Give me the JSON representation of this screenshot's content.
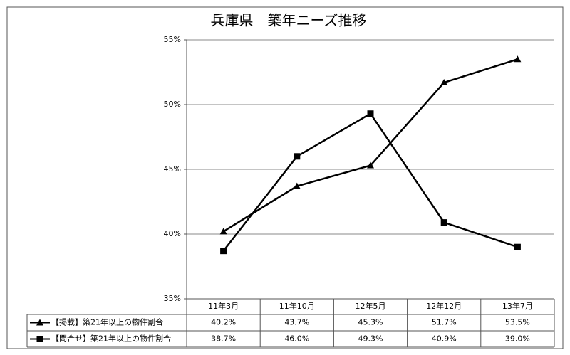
{
  "chart_data": {
    "type": "line",
    "title": "兵庫県　築年ニーズ推移",
    "categories": [
      "11年3月",
      "11年10月",
      "12年5月",
      "12年12月",
      "13年7月"
    ],
    "series": [
      {
        "name": "【掲載】築21年以上の物件割合",
        "color": "#000000",
        "marker": "triangle",
        "values": [
          40.2,
          43.7,
          45.3,
          51.7,
          53.5
        ],
        "value_labels": [
          "40.2%",
          "43.7%",
          "45.3%",
          "51.7%",
          "53.5%"
        ]
      },
      {
        "name": "【問合せ】築21年以上の物件割合",
        "color": "#000000",
        "marker": "square",
        "values": [
          38.7,
          46.0,
          49.3,
          40.9,
          39.0
        ],
        "value_labels": [
          "38.7%",
          "46.0%",
          "49.3%",
          "40.9%",
          "39.0%"
        ]
      }
    ],
    "ylim": [
      35,
      55
    ],
    "yticks": [
      {
        "value": 35,
        "label": "35%"
      },
      {
        "value": 40,
        "label": "40%"
      },
      {
        "value": 45,
        "label": "45%"
      },
      {
        "value": 50,
        "label": "50%"
      },
      {
        "value": 55,
        "label": "55%"
      }
    ],
    "grid": true
  }
}
